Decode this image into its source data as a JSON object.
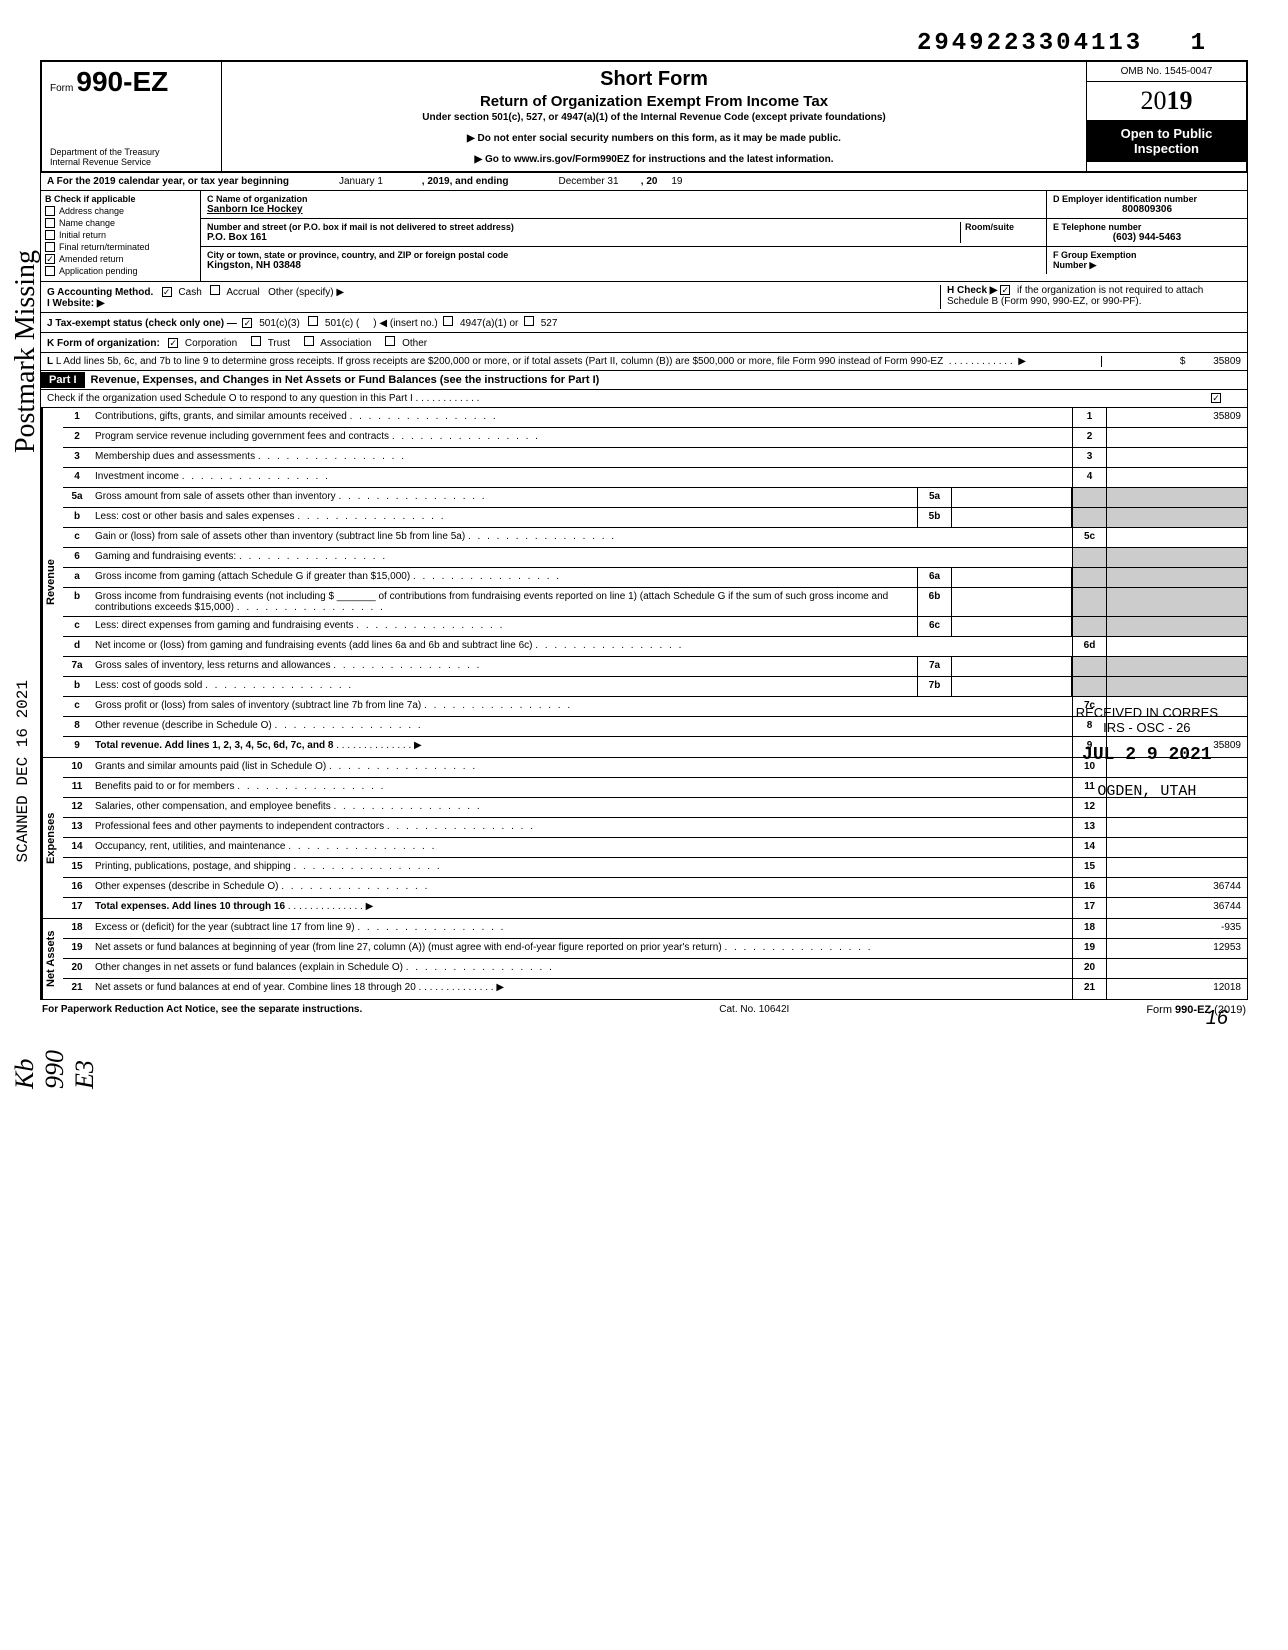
{
  "header": {
    "document_number": "2949223304113",
    "page_number_top": "1",
    "form_prefix": "Form",
    "form_number": "990-EZ",
    "dept": "Department of the Treasury",
    "irs": "Internal Revenue Service",
    "title": "Short Form",
    "subtitle": "Return of Organization Exempt From Income Tax",
    "desc": "Under section 501(c), 527, or 4947(a)(1) of the Internal Revenue Code (except private foundations)",
    "note1": "▶ Do not enter social security numbers on this form, as it may be made public.",
    "note2": "▶ Go to www.irs.gov/Form990EZ for instructions and the latest information.",
    "omb": "OMB No. 1545-0047",
    "year_prefix": "20",
    "year_bold": "19",
    "inspection1": "Open to Public",
    "inspection2": "Inspection"
  },
  "row_a": {
    "label": "A For the 2019 calendar year, or tax year beginning",
    "begin_date": "January 1",
    "mid": ", 2019, and ending",
    "end_date": "December 31",
    "end": ", 20",
    "end_year": "19"
  },
  "col_b": {
    "header": "B Check if applicable",
    "items": [
      {
        "label": "Address change",
        "checked": false
      },
      {
        "label": "Name change",
        "checked": false
      },
      {
        "label": "Initial return",
        "checked": false
      },
      {
        "label": "Final return/terminated",
        "checked": false
      },
      {
        "label": "Amended return",
        "checked": true
      },
      {
        "label": "Application pending",
        "checked": false
      }
    ]
  },
  "col_c": {
    "name_label": "C Name of organization",
    "name": "Sanborn Ice Hockey",
    "addr_label": "Number and street (or P.O. box if mail is not delivered to street address)",
    "room_label": "Room/suite",
    "addr": "P.O. Box 161",
    "city_label": "City or town, state or province, country, and ZIP or foreign postal code",
    "city": "Kingston, NH  03848"
  },
  "col_d": {
    "ein_label": "D Employer identification number",
    "ein": "800809306",
    "phone_label": "E Telephone number",
    "phone": "(603) 944-5463",
    "group_label": "F Group Exemption",
    "group_label2": "Number ▶"
  },
  "row_g": {
    "label": "G Accounting Method.",
    "cash": "Cash",
    "accrual": "Accrual",
    "other": "Other (specify) ▶"
  },
  "row_h": {
    "label": "H Check ▶",
    "text": "if the organization is not required to attach Schedule B (Form 990, 990-EZ, or 990-PF)."
  },
  "row_i": {
    "label": "I  Website: ▶"
  },
  "row_j": {
    "label": "J Tax-exempt status (check only one) —",
    "opt1": "501(c)(3)",
    "opt2": "501(c) (",
    "opt2b": ") ◀ (insert no.)",
    "opt3": "4947(a)(1) or",
    "opt4": "527"
  },
  "row_k": {
    "label": "K Form of organization:",
    "opt1": "Corporation",
    "opt2": "Trust",
    "opt3": "Association",
    "opt4": "Other"
  },
  "row_l": {
    "text": "L Add lines 5b, 6c, and 7b to line 9 to determine gross receipts. If gross receipts are $200,000 or more, or if total assets (Part II, column (B)) are $500,000 or more, file Form 990 instead of Form 990-EZ",
    "arrow": "▶",
    "dollar": "$",
    "value": "35809"
  },
  "part1": {
    "label": "Part I",
    "title": "Revenue, Expenses, and Changes in Net Assets or Fund Balances (see the instructions for Part I)",
    "check_text": "Check if the organization used Schedule O to respond to any question in this Part I"
  },
  "sections": {
    "revenue": "Revenue",
    "expenses": "Expenses",
    "netassets": "Net Assets"
  },
  "lines": [
    {
      "num": "1",
      "desc": "Contributions, gifts, grants, and similar amounts received",
      "rnum": "1",
      "rval": "35809"
    },
    {
      "num": "2",
      "desc": "Program service revenue including government fees and contracts",
      "rnum": "2",
      "rval": ""
    },
    {
      "num": "3",
      "desc": "Membership dues and assessments",
      "rnum": "3",
      "rval": ""
    },
    {
      "num": "4",
      "desc": "Investment income",
      "rnum": "4",
      "rval": ""
    },
    {
      "num": "5a",
      "desc": "Gross amount from sale of assets other than inventory",
      "midnum": "5a",
      "gray_r": true
    },
    {
      "num": "b",
      "desc": "Less: cost or other basis and sales expenses",
      "midnum": "5b",
      "gray_r": true
    },
    {
      "num": "c",
      "desc": "Gain or (loss) from sale of assets other than inventory (subtract line 5b from line 5a)",
      "rnum": "5c",
      "rval": ""
    },
    {
      "num": "6",
      "desc": "Gaming and fundraising events:",
      "gray_r": true,
      "no_border": true
    },
    {
      "num": "a",
      "desc": "Gross income from gaming (attach Schedule G if greater than $15,000)",
      "midnum": "6a",
      "gray_r": true
    },
    {
      "num": "b",
      "desc": "Gross income from fundraising events (not including  $ _______ of contributions from fundraising events reported on line 1) (attach Schedule G if the sum of such gross income and contributions exceeds $15,000)",
      "midnum": "6b",
      "gray_r": true
    },
    {
      "num": "c",
      "desc": "Less: direct expenses from gaming and fundraising events",
      "midnum": "6c",
      "gray_r": true
    },
    {
      "num": "d",
      "desc": "Net income or (loss) from gaming and fundraising events (add lines 6a and 6b and subtract line 6c)",
      "rnum": "6d",
      "rval": ""
    },
    {
      "num": "7a",
      "desc": "Gross sales of inventory, less returns and allowances",
      "midnum": "7a",
      "gray_r": true
    },
    {
      "num": "b",
      "desc": "Less: cost of goods sold",
      "midnum": "7b",
      "gray_r": true
    },
    {
      "num": "c",
      "desc": "Gross profit or (loss) from sales of inventory (subtract line 7b from line 7a)",
      "rnum": "7c",
      "rval": ""
    },
    {
      "num": "8",
      "desc": "Other revenue (describe in Schedule O)",
      "rnum": "8",
      "rval": ""
    },
    {
      "num": "9",
      "desc": "Total revenue. Add lines 1, 2, 3, 4, 5c, 6d, 7c, and 8",
      "rnum": "9",
      "rval": "35809",
      "bold": true,
      "arrow": true
    }
  ],
  "expense_lines": [
    {
      "num": "10",
      "desc": "Grants and similar amounts paid (list in Schedule O)",
      "rnum": "10",
      "rval": ""
    },
    {
      "num": "11",
      "desc": "Benefits paid to or for members",
      "rnum": "11",
      "rval": ""
    },
    {
      "num": "12",
      "desc": "Salaries, other compensation, and employee benefits",
      "rnum": "12",
      "rval": ""
    },
    {
      "num": "13",
      "desc": "Professional fees and other payments to independent contractors",
      "rnum": "13",
      "rval": ""
    },
    {
      "num": "14",
      "desc": "Occupancy, rent, utilities, and maintenance",
      "rnum": "14",
      "rval": ""
    },
    {
      "num": "15",
      "desc": "Printing, publications, postage, and shipping",
      "rnum": "15",
      "rval": ""
    },
    {
      "num": "16",
      "desc": "Other expenses (describe in Schedule O)",
      "rnum": "16",
      "rval": "36744"
    },
    {
      "num": "17",
      "desc": "Total expenses. Add lines 10 through 16",
      "rnum": "17",
      "rval": "36744",
      "bold": true,
      "arrow": true
    }
  ],
  "netasset_lines": [
    {
      "num": "18",
      "desc": "Excess or (deficit) for the year (subtract line 17 from line 9)",
      "rnum": "18",
      "rval": "-935"
    },
    {
      "num": "19",
      "desc": "Net assets or fund balances at beginning of year (from line 27, column (A)) (must agree with end-of-year figure reported on prior year's return)",
      "rnum": "19",
      "rval": "12953"
    },
    {
      "num": "20",
      "desc": "Other changes in net assets or fund balances (explain in Schedule O)",
      "rnum": "20",
      "rval": ""
    },
    {
      "num": "21",
      "desc": "Net assets or fund balances at end of year. Combine lines 18 through 20",
      "rnum": "21",
      "rval": "12018",
      "arrow": true
    }
  ],
  "footer": {
    "left": "For Paperwork Reduction Act Notice, see the separate instructions.",
    "mid": "Cat. No. 10642I",
    "right": "Form 990-EZ (2019)"
  },
  "stamps": {
    "postmark": "Postmark Missing",
    "scanned": "SCANNED DEC 16 2021",
    "handwritten": "Kb 990 E3",
    "received1": "RECEIVED IN CORRES",
    "received2": "IRS - OSC - 26",
    "received3": "JUL 2 9 2021",
    "received4": "OGDEN, UTAH",
    "page_bottom": "16"
  }
}
